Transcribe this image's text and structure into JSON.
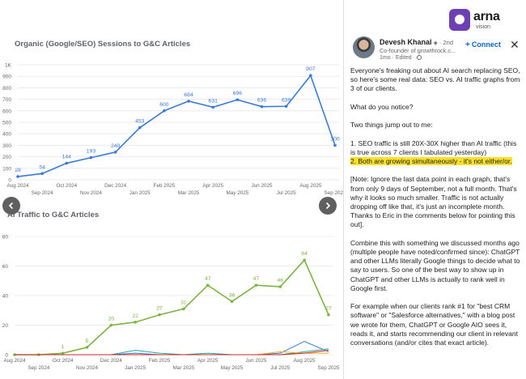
{
  "logo": {
    "word": "arna",
    "sub": "vision"
  },
  "chart_data": [
    {
      "type": "line",
      "title": "Organic (Google/SEO) Sessions to G&C Articles",
      "ylim": [
        0,
        1000
      ],
      "y_ticks": [
        "0",
        "100",
        "200",
        "300",
        "400",
        "500",
        "600",
        "700",
        "800",
        "900",
        "1K"
      ],
      "x_tick_labels_top": [
        "Aug 2024",
        "Oct 2024",
        "Dec 2024",
        "Feb 2025",
        "Apr 2025",
        "Jun 2025",
        "Aug 2025"
      ],
      "x_tick_labels_bottom": [
        "Sep 2024",
        "Nov 2024",
        "Jan 2025",
        "Mar 2025",
        "May 2025",
        "Jul 2025",
        "Sep 2025"
      ],
      "series": [
        {
          "values": [
            28,
            54,
            144,
            193,
            240,
            453,
            600,
            684,
            631,
            696,
            636,
            639,
            907,
            300
          ],
          "labels": [
            "28",
            "54",
            "144",
            "193",
            "240",
            "453",
            "600",
            "684",
            "631",
            "696",
            "636",
            "639",
            "907",
            "300"
          ],
          "color": "#3a7bd5"
        }
      ],
      "grid": true
    },
    {
      "type": "line",
      "title": "AI Traffic to G&C Articles",
      "ylim": [
        0,
        80
      ],
      "y_ticks": [
        "0",
        "20",
        "40",
        "60",
        "80"
      ],
      "x_tick_labels_top": [
        "Aug 2024",
        "Oct 2024",
        "Dec 2024",
        "Feb 2025",
        "Apr 2025",
        "Jun 2025",
        "Aug 2025"
      ],
      "x_tick_labels_bottom": [
        "Sep 2024",
        "Nov 2024",
        "Jan 2025",
        "Mar 2025",
        "May 2025",
        "Jul 2025",
        "Sep 2025"
      ],
      "series": [
        {
          "values": [
            0,
            0,
            1,
            5,
            20,
            22,
            27,
            31,
            47,
            36,
            47,
            46,
            64,
            27
          ],
          "labels": [
            "",
            "",
            "1",
            "5",
            "20",
            "22",
            "27",
            "31",
            "47",
            "36",
            "47",
            "46",
            "64",
            "27"
          ],
          "color": "#7cb342"
        },
        {
          "values": [
            0,
            0,
            0,
            0,
            0,
            1,
            0,
            0,
            0,
            0,
            0,
            1,
            9,
            2
          ],
          "labels": [],
          "color": "#3a7bd5"
        },
        {
          "values": [
            0,
            0,
            0,
            0,
            0,
            3,
            1,
            0,
            1,
            0,
            0,
            0,
            2,
            4
          ],
          "labels": [],
          "color": "#26a69a"
        },
        {
          "values": [
            0,
            0,
            0,
            0,
            0,
            0,
            0,
            0,
            0,
            0,
            0,
            2,
            1,
            1
          ],
          "labels": [],
          "color": "#f9a825"
        },
        {
          "values": [
            0,
            0,
            0,
            0,
            0,
            0,
            0,
            0,
            0,
            0,
            0,
            0,
            1,
            3
          ],
          "labels": [],
          "color": "#c62828"
        }
      ],
      "grid": true
    }
  ],
  "post": {
    "author_name": "Devesh Khanal",
    "degree": "· 2nd",
    "author_title": "Co-founder of growthrock.c...",
    "meta": "1mo · Edited ·",
    "connect_label": "Connect",
    "close_label": "✕",
    "paragraphs": [
      "Everyone's freaking out about AI search replacing SEO, so here's some real data: SEO vs. AI traffic graphs from 3 of our clients.",
      "What do you notice?",
      "Two things jump out to me:",
      "[Note: Ignore the last data point in each graph, that's from only 9 days of September, not a full month. That's why it looks so much smaller. Traffic is not actually dropping off like that, it's just an incomplete month. Thanks to Eric in the comments below for pointing this out].",
      "Combine this with something we discussed months ago (multiple people have noted/confirmed since): ChatGPT and other LLMs literally Google things to decide what to say to users. So one of the best way to show up in ChatGPT and other LLMs is actually to rank well in Google first.",
      "For example when our clients rank #1 for \"best CRM software\" or \"Salesforce alternatives,\" with a blog post we wrote for them, ChatGPT or Google AIO sees it, reads it, and starts recommending our client in relevant conversations (and/or cites that exact article)."
    ],
    "point_1": "1. SEO traffic is still 20X-30X higher than AI traffic (this is true across 7 clients I tabulated yesterday)",
    "point_2": "2. Both are growing simultaneously - it's not either/or."
  }
}
